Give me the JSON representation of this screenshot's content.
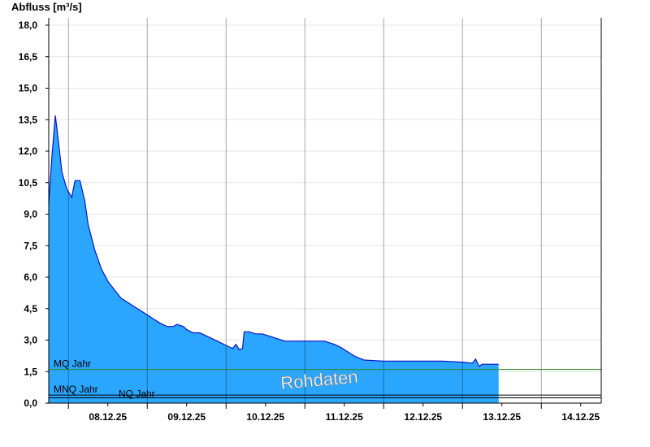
{
  "chart_data": {
    "type": "area",
    "ylabel": "Abfluss [m³/s]",
    "ylim": [
      0,
      18.5
    ],
    "yticks": [
      "0,0",
      "1,5",
      "3,0",
      "4,5",
      "6,0",
      "7,5",
      "9,0",
      "10,5",
      "12,0",
      "13,5",
      "15,0",
      "16,5",
      "18,0"
    ],
    "ytick_values": [
      0,
      1.5,
      3,
      4.5,
      6,
      7.5,
      9,
      10.5,
      12,
      13.5,
      15,
      16.5,
      18
    ],
    "xticks": [
      "08.12.25",
      "09.12.25",
      "10.12.25",
      "11.12.25",
      "12.12.25",
      "13.12.25",
      "14.12.25"
    ],
    "xlim_days": [
      "07.12.25 18:00",
      "14.12.25 18:00"
    ],
    "grid": true,
    "colors": {
      "area": "#2aa6ff",
      "line": "#0a14c8",
      "mq": "#2a8a2a",
      "ref": "#000000"
    },
    "reference_lines": [
      {
        "label": "MQ Jahr",
        "value": 1.6
      },
      {
        "label": "MNQ Jahr",
        "value": 0.38
      },
      {
        "label": "NQ Jahr",
        "value": 0.25
      }
    ],
    "watermark": "Rohdaten",
    "series": [
      {
        "values": [
          [
            "07.12.25 18:00",
            9.5
          ],
          [
            "07.12.25 19:00",
            11.8
          ],
          [
            "07.12.25 20:00",
            13.7
          ],
          [
            "07.12.25 21:00",
            12.4
          ],
          [
            "07.12.25 22:00",
            11.0
          ],
          [
            "07.12.25 23:30",
            10.2
          ],
          [
            "08.12.25 01:00",
            9.8
          ],
          [
            "08.12.25 02:00",
            10.6
          ],
          [
            "08.12.25 03:30",
            10.6
          ],
          [
            "08.12.25 05:00",
            9.6
          ],
          [
            "08.12.25 06:00",
            8.5
          ],
          [
            "08.12.25 08:00",
            7.3
          ],
          [
            "08.12.25 10:00",
            6.4
          ],
          [
            "08.12.25 12:00",
            5.8
          ],
          [
            "08.12.25 14:00",
            5.4
          ],
          [
            "08.12.25 16:00",
            5.0
          ],
          [
            "08.12.25 18:00",
            4.8
          ],
          [
            "08.12.25 20:00",
            4.6
          ],
          [
            "08.12.25 22:00",
            4.4
          ],
          [
            "09.12.25 00:00",
            4.2
          ],
          [
            "09.12.25 02:00",
            4.0
          ],
          [
            "09.12.25 04:00",
            3.8
          ],
          [
            "09.12.25 06:00",
            3.65
          ],
          [
            "09.12.25 08:00",
            3.65
          ],
          [
            "09.12.25 09:00",
            3.75
          ],
          [
            "09.12.25 11:00",
            3.65
          ],
          [
            "09.12.25 12:00",
            3.5
          ],
          [
            "09.12.25 14:00",
            3.35
          ],
          [
            "09.12.25 16:00",
            3.35
          ],
          [
            "09.12.25 18:00",
            3.2
          ],
          [
            "09.12.25 20:00",
            3.05
          ],
          [
            "09.12.25 22:00",
            2.9
          ],
          [
            "10.12.25 00:00",
            2.75
          ],
          [
            "10.12.25 02:00",
            2.6
          ],
          [
            "10.12.25 03:00",
            2.8
          ],
          [
            "10.12.25 04:00",
            2.55
          ],
          [
            "10.12.25 05:00",
            2.6
          ],
          [
            "10.12.25 05:30",
            3.4
          ],
          [
            "10.12.25 07:00",
            3.4
          ],
          [
            "10.12.25 09:00",
            3.3
          ],
          [
            "10.12.25 11:00",
            3.3
          ],
          [
            "10.12.25 13:00",
            3.2
          ],
          [
            "10.12.25 15:00",
            3.1
          ],
          [
            "10.12.25 18:00",
            2.95
          ],
          [
            "11.12.25 00:00",
            2.95
          ],
          [
            "11.12.25 06:00",
            2.95
          ],
          [
            "11.12.25 09:00",
            2.8
          ],
          [
            "11.12.25 11:00",
            2.65
          ],
          [
            "11.12.25 13:00",
            2.45
          ],
          [
            "11.12.25 15:00",
            2.25
          ],
          [
            "11.12.25 18:00",
            2.05
          ],
          [
            "12.12.25 00:00",
            2.0
          ],
          [
            "12.12.25 06:00",
            2.0
          ],
          [
            "12.12.25 12:00",
            2.0
          ],
          [
            "12.12.25 18:00",
            2.0
          ],
          [
            "13.12.25 00:00",
            1.95
          ],
          [
            "13.12.25 03:00",
            1.9
          ],
          [
            "13.12.25 04:00",
            2.1
          ],
          [
            "13.12.25 05:00",
            1.75
          ],
          [
            "13.12.25 06:00",
            1.85
          ],
          [
            "13.12.25 09:00",
            1.85
          ],
          [
            "13.12.25 11:00",
            1.85
          ]
        ]
      }
    ]
  }
}
